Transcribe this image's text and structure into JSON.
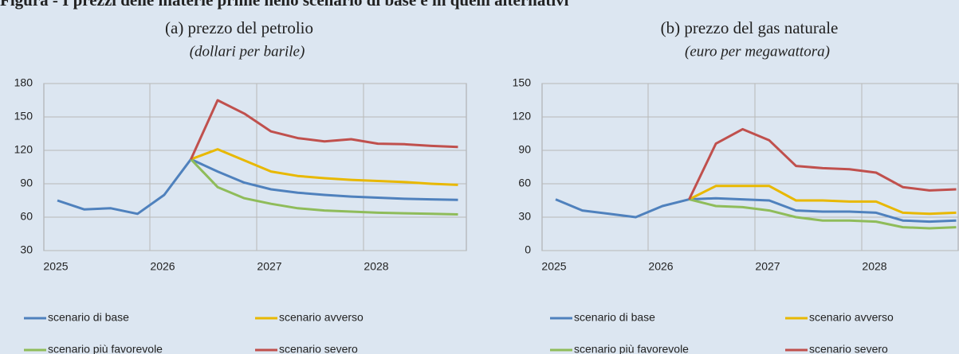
{
  "title": "Figura - I prezzi delle materie prime nello scenario di base e in quelli alternativi",
  "chart_data": [
    {
      "type": "line",
      "title": "(a) prezzo del petrolio",
      "subtitle": "(dollari per barile)",
      "categories": [
        "2025",
        null,
        null,
        null,
        "2026",
        null,
        null,
        null,
        "2027",
        null,
        null,
        null,
        "2028",
        null,
        null,
        null
      ],
      "ylim": [
        30,
        180
      ],
      "yticks": [
        30,
        60,
        90,
        120,
        150,
        180
      ],
      "grid": true,
      "series": [
        {
          "name": "scenario di base",
          "color": "#4f81bd",
          "values": [
            75,
            67,
            68,
            63,
            80,
            112,
            101,
            91,
            85,
            82,
            80,
            78.5,
            77.5,
            76.5,
            76,
            75.5
          ]
        },
        {
          "name": "scenario avverso",
          "color": "#e8b800",
          "values": [
            null,
            null,
            null,
            null,
            null,
            112,
            121,
            111,
            101,
            97,
            95,
            93.5,
            92.5,
            91.5,
            90,
            89
          ]
        },
        {
          "name": "scenario più favorevole",
          "color": "#8fbc5a",
          "values": [
            null,
            null,
            null,
            null,
            null,
            112,
            87,
            77,
            72,
            68,
            66,
            65,
            64,
            63.5,
            63,
            62.5
          ]
        },
        {
          "name": "scenario severo",
          "color": "#c0504d",
          "values": [
            null,
            null,
            null,
            null,
            null,
            112,
            165,
            153,
            137,
            131,
            128,
            130,
            126,
            125.5,
            124,
            123
          ]
        }
      ]
    },
    {
      "type": "line",
      "title": "(b) prezzo del gas naturale",
      "subtitle": "(euro per megawattora)",
      "categories": [
        "2025",
        null,
        null,
        null,
        "2026",
        null,
        null,
        null,
        "2027",
        null,
        null,
        null,
        "2028",
        null,
        null,
        null
      ],
      "ylim": [
        0,
        150
      ],
      "yticks": [
        0,
        30,
        60,
        90,
        120,
        150
      ],
      "grid": true,
      "series": [
        {
          "name": "scenario di base",
          "color": "#4f81bd",
          "values": [
            46,
            36,
            33,
            30,
            40,
            46,
            47,
            46,
            45,
            36,
            35,
            35,
            34,
            27,
            26,
            27
          ]
        },
        {
          "name": "scenario avverso",
          "color": "#e8b800",
          "values": [
            null,
            null,
            null,
            null,
            null,
            46,
            58,
            58,
            58,
            45,
            45,
            44,
            44,
            34,
            33,
            34
          ]
        },
        {
          "name": "scenario più favorevole",
          "color": "#8fbc5a",
          "values": [
            null,
            null,
            null,
            null,
            null,
            46,
            40,
            39,
            36,
            30,
            27,
            27,
            26,
            21,
            20,
            21
          ]
        },
        {
          "name": "scenario severo",
          "color": "#c0504d",
          "values": [
            null,
            null,
            null,
            null,
            null,
            46,
            96,
            109,
            99,
            76,
            74,
            73,
            70,
            57,
            54,
            55
          ]
        }
      ]
    }
  ]
}
